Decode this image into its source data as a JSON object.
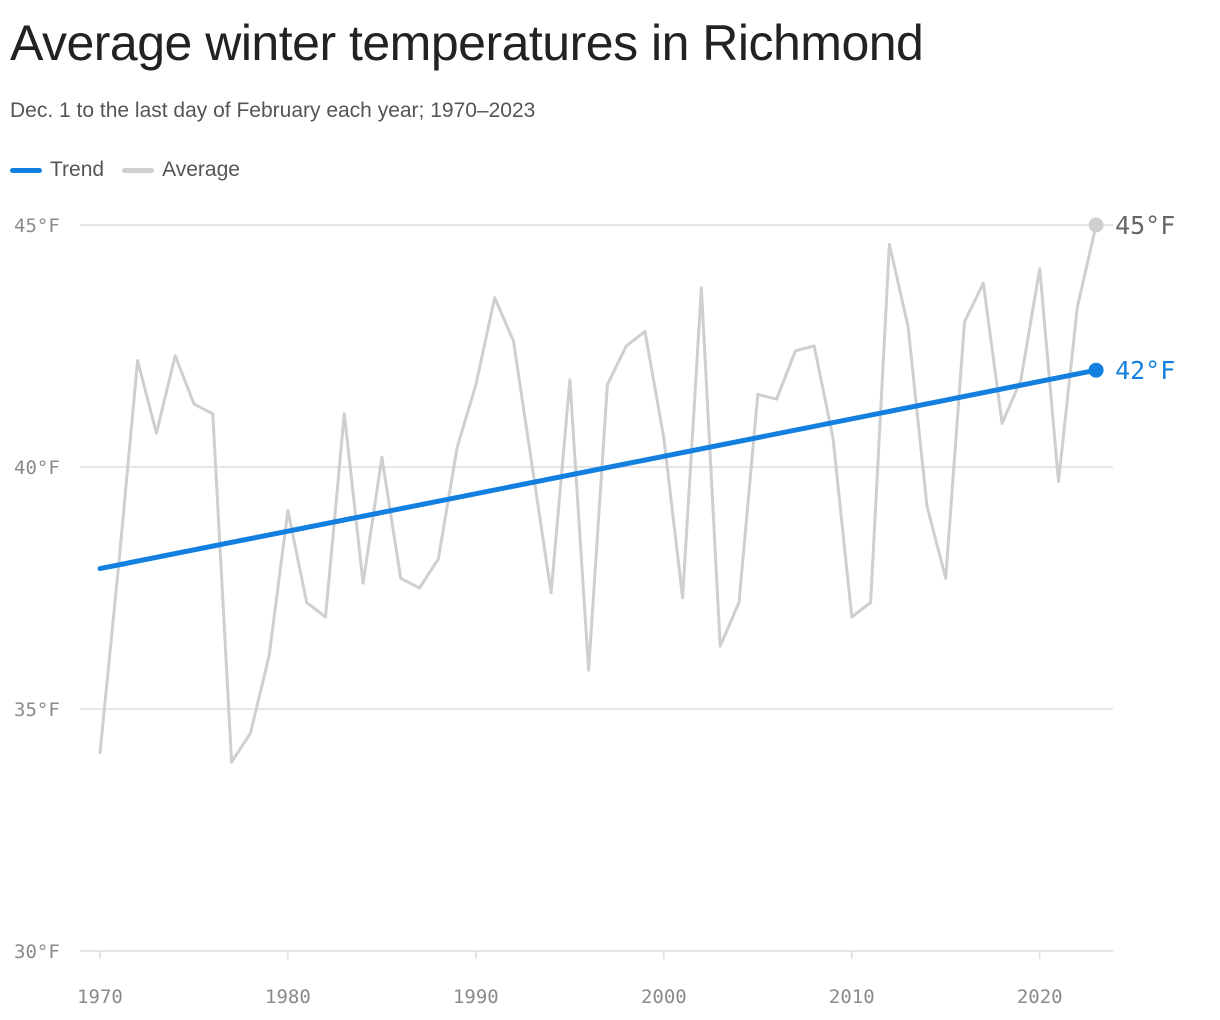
{
  "header": {
    "title": "Average winter temperatures in Richmond",
    "subtitle": "Dec. 1 to the last day of February each year; 1970–2023"
  },
  "legend": [
    {
      "label": "Trend",
      "color": "#1380e0"
    },
    {
      "label": "Average",
      "color": "#cfcfcf"
    }
  ],
  "chart_data": {
    "type": "line",
    "x_ticks": [
      1970,
      1980,
      1990,
      2000,
      2010,
      2020
    ],
    "x_range": [
      1970,
      2023.9
    ],
    "y_ticks": [
      {
        "value": 30,
        "label": "30°F"
      },
      {
        "value": 35,
        "label": "35°F"
      },
      {
        "value": 40,
        "label": "40°F"
      },
      {
        "value": 45,
        "label": "45°F"
      }
    ],
    "ylim": [
      30,
      45
    ],
    "grid": true,
    "legend_position": "top-left",
    "series": [
      {
        "name": "Average",
        "color": "#cfcfcf",
        "end_label": "45°F",
        "x": [
          1970,
          1971,
          1972,
          1973,
          1974,
          1975,
          1976,
          1977,
          1978,
          1979,
          1980,
          1981,
          1982,
          1983,
          1984,
          1985,
          1986,
          1987,
          1988,
          1989,
          1990,
          1991,
          1992,
          1993,
          1994,
          1995,
          1996,
          1997,
          1998,
          1999,
          2000,
          2001,
          2002,
          2003,
          2004,
          2005,
          2006,
          2007,
          2008,
          2009,
          2010,
          2011,
          2012,
          2013,
          2014,
          2015,
          2016,
          2017,
          2018,
          2019,
          2020,
          2021,
          2022,
          2023
        ],
        "values": [
          34.1,
          38.0,
          42.2,
          40.7,
          42.3,
          41.3,
          41.1,
          33.9,
          34.5,
          36.1,
          39.1,
          37.2,
          36.9,
          41.1,
          37.6,
          40.2,
          37.7,
          37.5,
          38.1,
          40.4,
          41.7,
          43.5,
          42.6,
          40.0,
          37.4,
          41.8,
          35.8,
          41.7,
          42.5,
          42.8,
          40.6,
          37.3,
          43.7,
          36.3,
          37.2,
          41.5,
          41.4,
          42.4,
          42.5,
          40.6,
          36.9,
          37.2,
          44.6,
          42.9,
          39.2,
          37.7,
          43.0,
          43.8,
          40.9,
          41.8,
          44.1,
          39.7,
          43.3,
          45.0
        ]
      },
      {
        "name": "Trend",
        "color": "#1380e0",
        "end_label": "42°F",
        "x": [
          1970,
          2023
        ],
        "values": [
          37.9,
          42.0
        ]
      }
    ]
  }
}
